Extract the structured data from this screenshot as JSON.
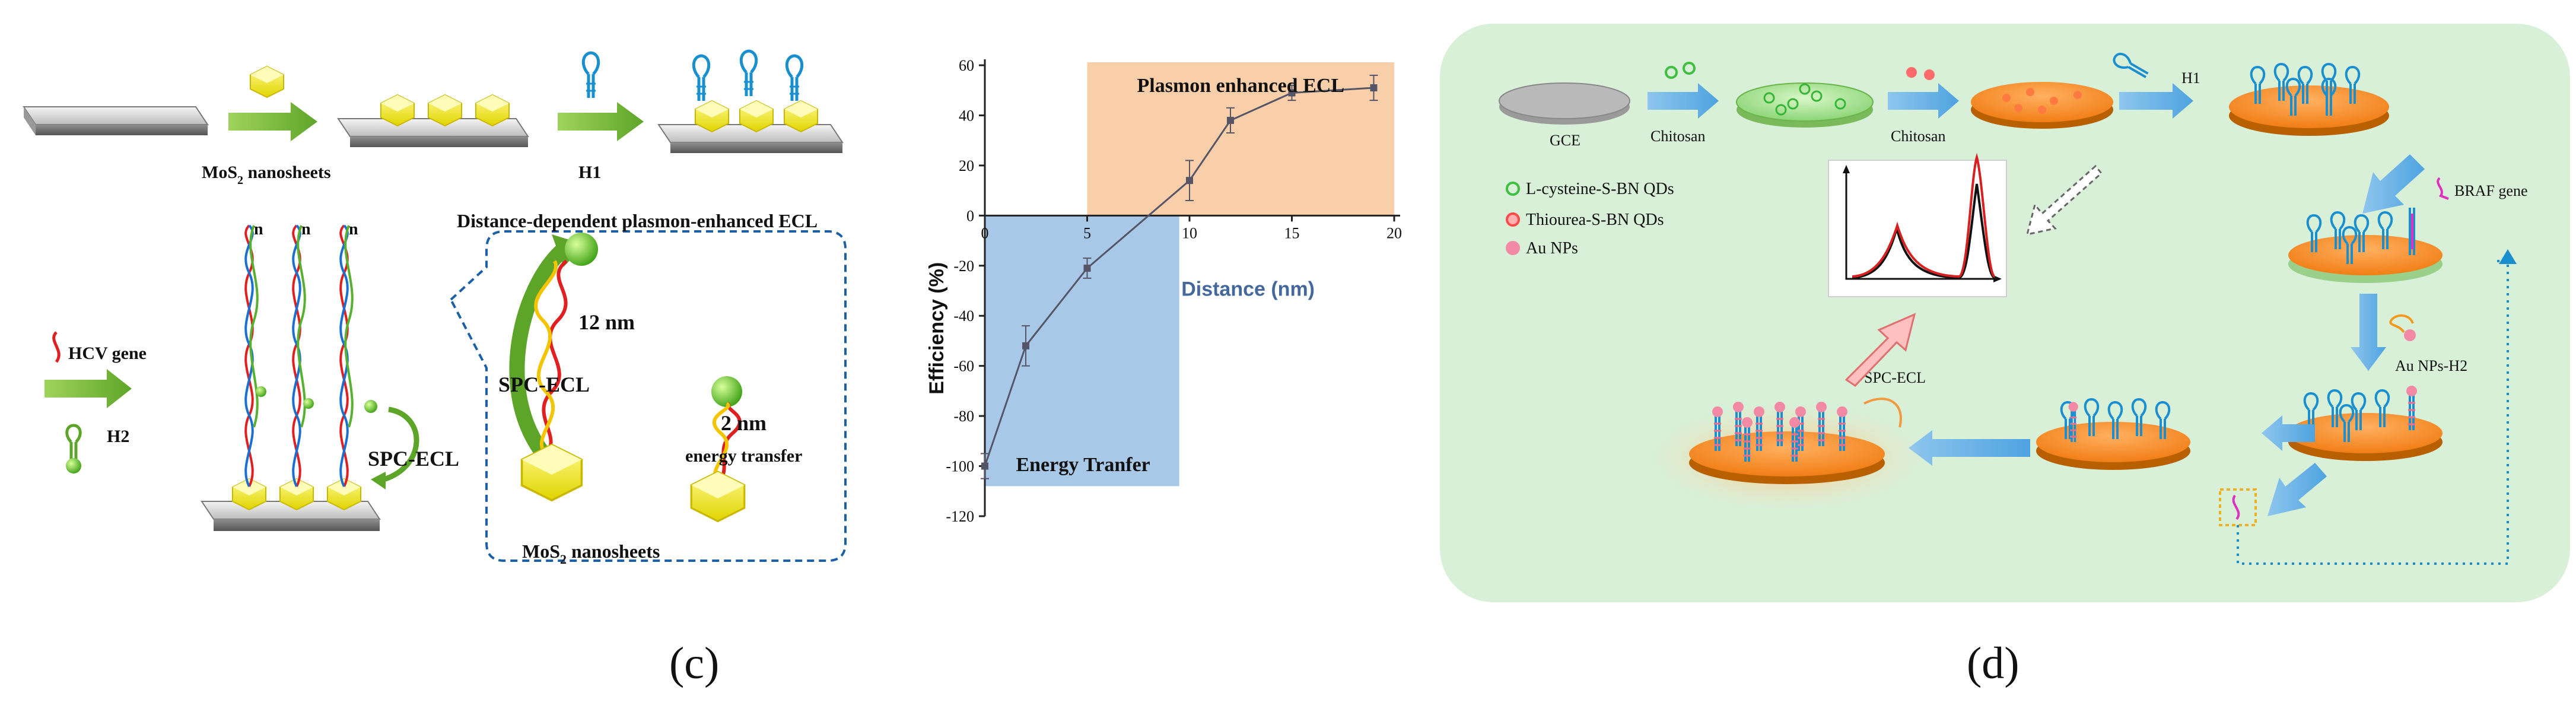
{
  "panel_c": {
    "caption": "(c)",
    "label_mos2_top": "MoS",
    "label_mos2_top_sub": "2",
    "label_mos2_top_tail": " nanosheets",
    "label_h1": "H1",
    "label_hcv_gene": "HCV gene",
    "label_h2": "H2",
    "label_spc_ecl_left": "SPC-ECL",
    "label_n": "n",
    "box_title": "Distance-dependent plasmon-enhanced ECL",
    "label_12nm": "12 nm",
    "label_spc_ecl_box": "SPC-ECL",
    "label_2nm": "2 nm",
    "label_energy_transfer": "energy transfer",
    "label_mos2_bottom": "MoS",
    "label_mos2_bottom_sub": "2",
    "label_mos2_bottom_tail": " nanosheets"
  },
  "chart_data": {
    "type": "line",
    "x": [
      0,
      2,
      5,
      10,
      12,
      15,
      19
    ],
    "values": [
      -100,
      -52,
      -21,
      14,
      38,
      49,
      51
    ],
    "errors": [
      5,
      8,
      4,
      8,
      5,
      3,
      5
    ],
    "xlabel": "Distance (nm)",
    "ylabel": "Efficiency (%)",
    "xlim": [
      0,
      20
    ],
    "ylim": [
      -120,
      60
    ],
    "xticks": [
      "0",
      "5",
      "10",
      "15",
      "20"
    ],
    "yticks": [
      "60",
      "40",
      "20",
      "0",
      "-20",
      "-40",
      "-60",
      "-80",
      "-100",
      "-120"
    ],
    "region_top_label": "Plasmon enhanced ECL",
    "region_bottom_label": "Energy Tranfer",
    "colors": {
      "top_region": "#f9cfaa",
      "bottom_region": "#a8c8e8",
      "line": "#555566"
    }
  },
  "panel_d": {
    "caption": "(d)",
    "background": "#d8efd8",
    "label_gce": "GCE",
    "label_chitosan_1": "Chitosan",
    "label_chitosan_2": "Chitosan",
    "label_h1": "H1",
    "legend_lcys": "L-cysteine-S-BN QDs",
    "legend_thiourea": "Thiourea-S-BN QDs",
    "legend_au": "Au NPs",
    "label_braf": "BRAF gene",
    "label_au_h2": "Au NPs-H2",
    "label_spc_ecl": "SPC-ECL"
  }
}
